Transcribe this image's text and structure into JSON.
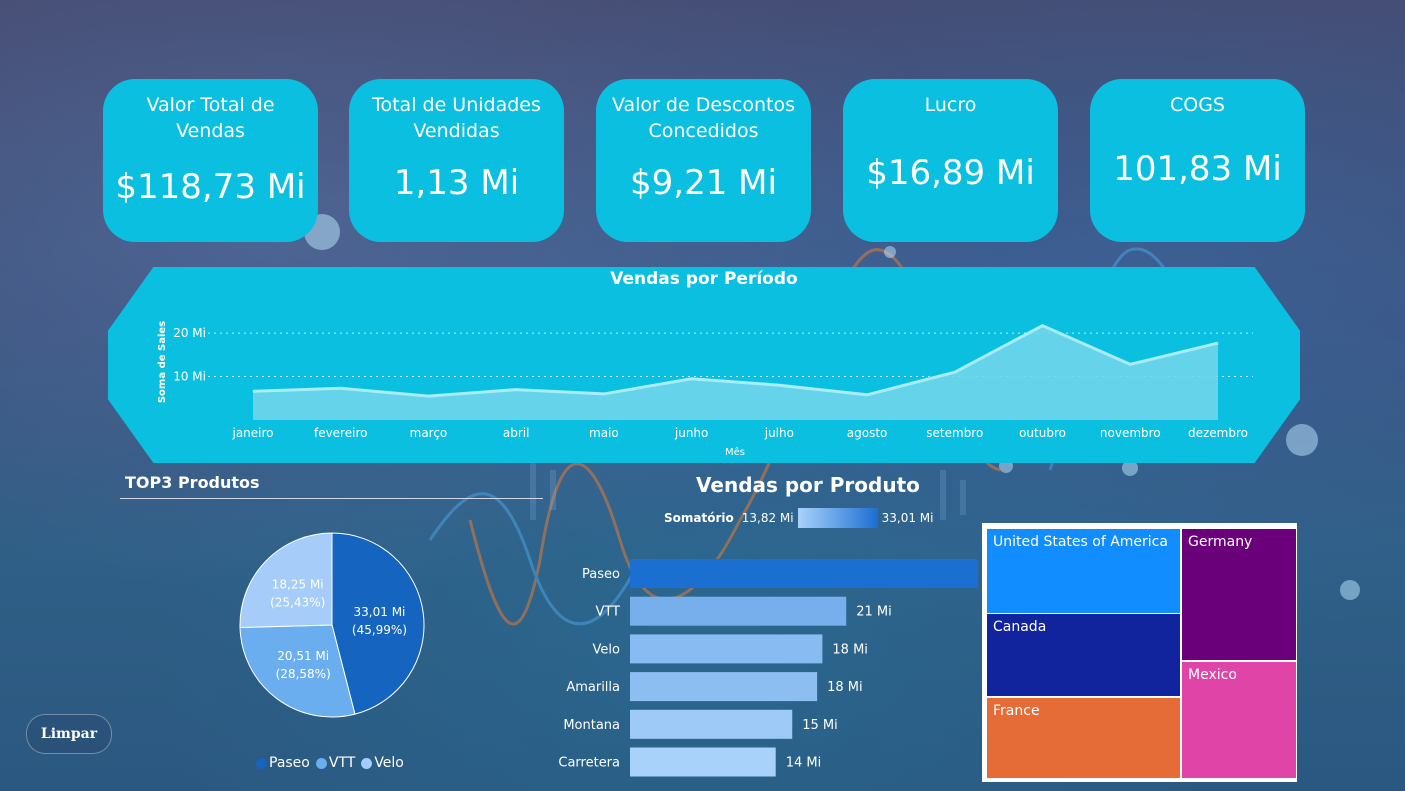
{
  "kpis": [
    {
      "title_line1": "Valor Total de",
      "title_line2": "Vendas",
      "value": "$118,73 Mi"
    },
    {
      "title_line1": "Total de Unidades",
      "title_line2": "Vendidas",
      "value": "1,13 Mi"
    },
    {
      "title_line1": "Valor de Descontos",
      "title_line2": "Concedidos",
      "value": "$9,21 Mi"
    },
    {
      "title_line1": "Lucro",
      "title_line2": "",
      "value": "$16,89 Mi"
    },
    {
      "title_line1": "COGS",
      "title_line2": "",
      "value": "101,83 Mi"
    }
  ],
  "buttons": {
    "limpar": "Limpar"
  },
  "colors": {
    "kpi_card": "#0bbfe0",
    "paseo": "#1565c0",
    "vtt": "#6aaef0",
    "velo": "#a6ccfa",
    "area_fill": "#6fd6ec"
  },
  "chart_data": [
    {
      "type": "area",
      "title": "Vendas por Período",
      "xlabel": "Mês",
      "ylabel": "Soma de Sales",
      "categories": [
        "janeiro",
        "fevereiro",
        "março",
        "abril",
        "maio",
        "junho",
        "julho",
        "agosto",
        "setembro",
        "outubro",
        "novembro",
        "dezembro"
      ],
      "values": [
        6.6,
        7.3,
        5.5,
        7.0,
        6.0,
        9.5,
        8.0,
        5.8,
        11.0,
        21.7,
        12.8,
        17.7
      ],
      "ylim": [
        0,
        26
      ],
      "yticks": [
        10,
        20
      ],
      "ytick_labels": [
        "10 Mi",
        "20 Mi"
      ],
      "grid": true
    },
    {
      "type": "pie",
      "title": "TOP3 Produtos",
      "labels": [
        "Paseo",
        "VTT",
        "Velo"
      ],
      "values": [
        33.01,
        20.51,
        18.25
      ],
      "slice_labels": [
        [
          "33,01 Mi",
          "(45,99%)"
        ],
        [
          "20,51 Mi",
          "(28,58%)"
        ],
        [
          "18,25 Mi",
          "(25,43%)"
        ]
      ],
      "legend": "bottom"
    },
    {
      "type": "bar",
      "orientation": "horizontal",
      "title": "Vendas por Produto",
      "legend_label": "Somatório",
      "color_scale_labels": [
        "13,82 Mi",
        "33,01 Mi"
      ],
      "categories": [
        "Paseo",
        "VTT",
        "Velo",
        "Amarilla",
        "Montana",
        "Carretera"
      ],
      "values": [
        33.01,
        20.51,
        18.25,
        17.75,
        15.39,
        13.82
      ],
      "data_labels": [
        "",
        "21 Mi",
        "18 Mi",
        "18 Mi",
        "15 Mi",
        "14 Mi"
      ]
    },
    {
      "type": "treemap",
      "labels": [
        "United States of America",
        "Canada",
        "France",
        "Germany",
        "Mexico"
      ],
      "colors": [
        "#118dff",
        "#12239e",
        "#e66c37",
        "#6b007b",
        "#e044a7"
      ]
    }
  ]
}
